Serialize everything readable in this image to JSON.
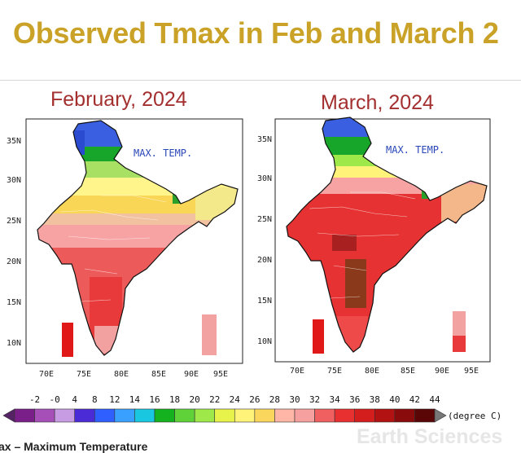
{
  "title": "Observed Tmax in Feb and March 2",
  "maps": [
    {
      "id": "feb",
      "heading": "February, 2024",
      "label": "MAX. TEMP.",
      "lat_ticks": [
        "35N",
        "30N",
        "25N",
        "20N",
        "15N",
        "10N"
      ],
      "lon_ticks": [
        "70E",
        "75E",
        "80E",
        "85E",
        "90E",
        "95E"
      ]
    },
    {
      "id": "mar",
      "heading": "March,  2024",
      "label": "MAX. TEMP.",
      "lat_ticks": [
        "35N",
        "30N",
        "25N",
        "20N",
        "15N",
        "10N"
      ],
      "lon_ticks": [
        "70E",
        "75E",
        "80E",
        "85E",
        "90E",
        "95E"
      ]
    }
  ],
  "colorbar": {
    "ticks": [
      "-2",
      "-0",
      "4",
      "8",
      "12",
      "14",
      "16",
      "18",
      "20",
      "22",
      "24",
      "26",
      "28",
      "30",
      "32",
      "34",
      "36",
      "38",
      "40",
      "42",
      "44"
    ],
    "unit": "(degree C)",
    "colors": [
      "#7a1f8a",
      "#a64fb8",
      "#c79ce3",
      "#4b2bd6",
      "#2f5fff",
      "#3aa0ff",
      "#19c8e0",
      "#14b21e",
      "#5fd23a",
      "#9ee84a",
      "#e7f24a",
      "#fff37a",
      "#fbd65c",
      "#ffb6a6",
      "#f7a0a0",
      "#f06060",
      "#e83030",
      "#d41e1e",
      "#b31212",
      "#8a0b0b",
      "#5a0606"
    ],
    "under": "#552266",
    "over": "#777777"
  },
  "footer": "ax – Maximum Temperature",
  "watermark": "Earth Sciences",
  "palette": {
    "title": "#c9a227",
    "heading": "#a32f2f",
    "label": "#2a47b8"
  }
}
